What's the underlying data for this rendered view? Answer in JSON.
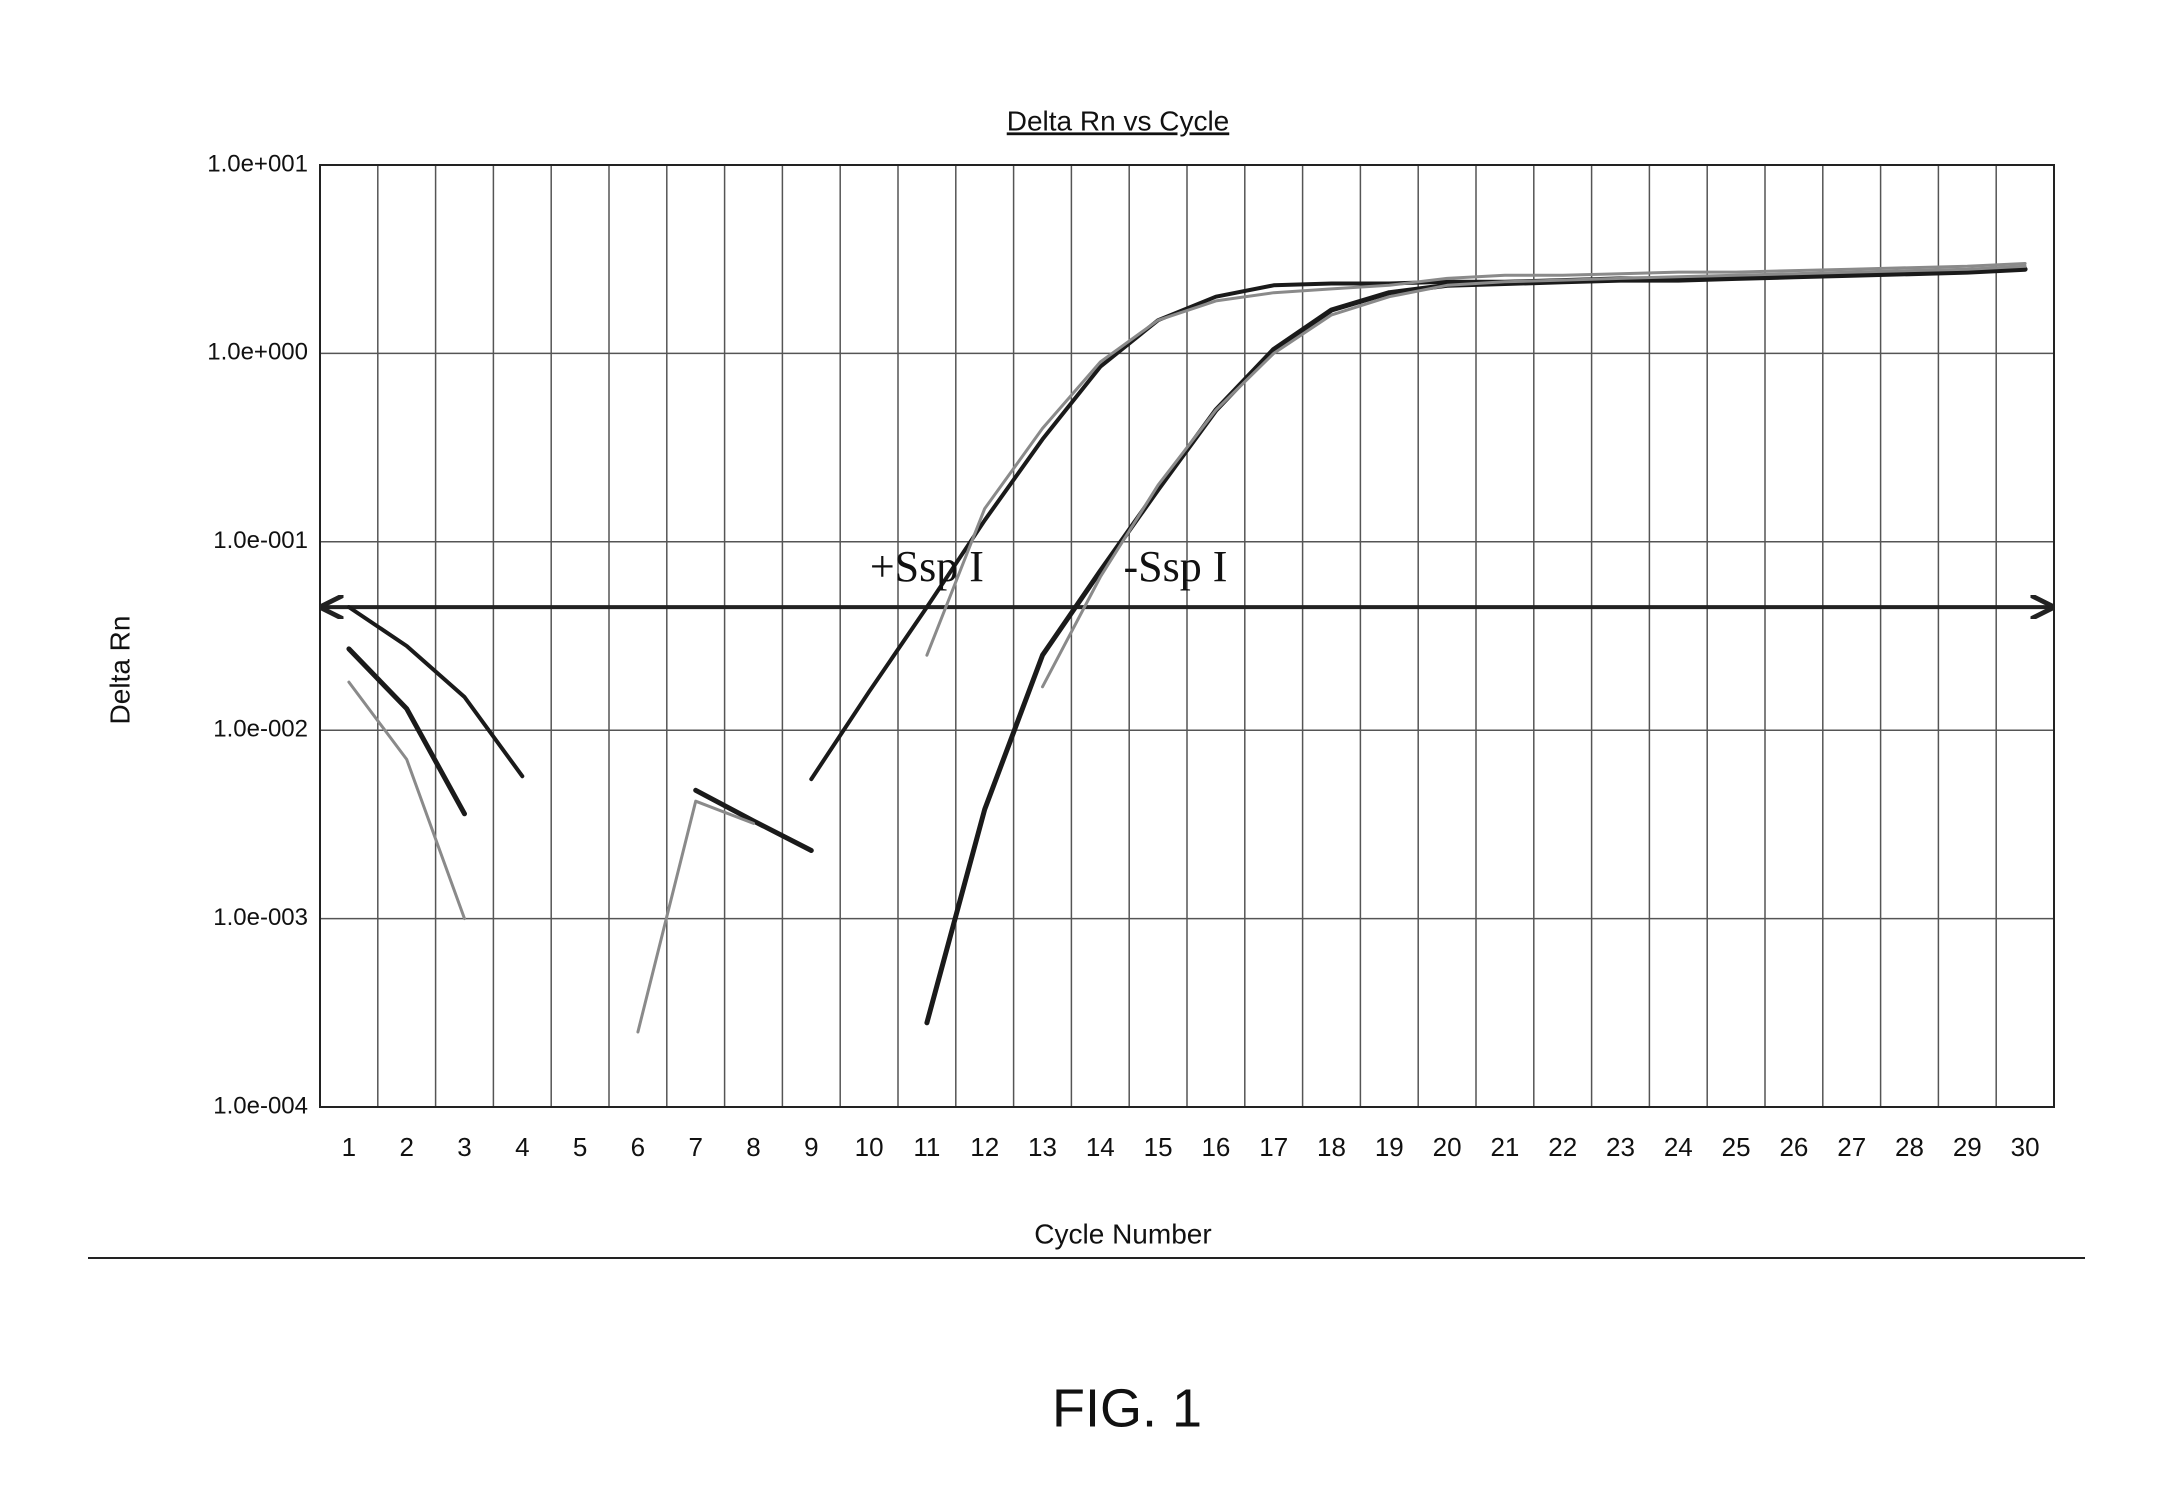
{
  "chart_data": {
    "type": "line",
    "title": "Delta Rn vs Cycle",
    "x_label": "Cycle Number",
    "y_label": "Delta Rn",
    "caption": "FIG. 1",
    "log_y": true,
    "grid": true,
    "categories": [
      "1",
      "2",
      "3",
      "4",
      "5",
      "6",
      "7",
      "8",
      "9",
      "10",
      "11",
      "12",
      "13",
      "14",
      "15",
      "16",
      "17",
      "18",
      "19",
      "20",
      "21",
      "22",
      "23",
      "24",
      "25",
      "26",
      "27",
      "28",
      "29",
      "30"
    ],
    "ylim": [
      0.0001,
      10
    ],
    "yticks": [
      {
        "value": 0.0001,
        "label": "1.0e-004"
      },
      {
        "value": 0.001,
        "label": "1.0e-003"
      },
      {
        "value": 0.01,
        "label": "1.0e-002"
      },
      {
        "value": 0.1,
        "label": "1.0e-001"
      },
      {
        "value": 1,
        "label": "1.0e+000"
      },
      {
        "value": 10,
        "label": "1.0e+001"
      }
    ],
    "threshold": 0.045,
    "annotations": [
      {
        "text": "+Ssp I",
        "x": 11,
        "y": 0.07
      },
      {
        "text": "-Ssp I",
        "x": 15.3,
        "y": 0.07
      }
    ],
    "series": [
      {
        "color": "#1a1a1a",
        "width": 4,
        "values": [
          0.045,
          0.028,
          0.015,
          0.0057,
          null,
          null,
          null,
          null,
          0.0055,
          0.016,
          0.045,
          0.13,
          0.35,
          0.85,
          1.5,
          2.0,
          2.3,
          2.35,
          2.35,
          2.4,
          2.4,
          2.45,
          2.5,
          2.5,
          2.55,
          2.6,
          2.6,
          2.65,
          2.7,
          2.8
        ]
      },
      {
        "color": "#1a1a1a",
        "width": 5,
        "values": [
          0.027,
          0.013,
          0.0036,
          null,
          null,
          null,
          0.0048,
          0.0033,
          0.0023,
          null,
          0.00028,
          0.0038,
          0.025,
          0.07,
          0.19,
          0.5,
          1.05,
          1.7,
          2.1,
          2.3,
          2.35,
          2.4,
          2.45,
          2.45,
          2.5,
          2.55,
          2.6,
          2.65,
          2.7,
          2.8
        ]
      },
      {
        "color": "#8a8a8a",
        "width": 3,
        "values": [
          0.018,
          0.007,
          0.001,
          null,
          null,
          0.00025,
          0.0042,
          0.0032,
          null,
          null,
          0.025,
          0.15,
          0.4,
          0.9,
          1.5,
          1.9,
          2.1,
          2.2,
          2.3,
          2.5,
          2.6,
          2.6,
          2.65,
          2.7,
          2.7,
          2.75,
          2.8,
          2.85,
          2.9,
          3.0
        ]
      },
      {
        "color": "#8a8a8a",
        "width": 3,
        "values": [
          null,
          null,
          null,
          null,
          null,
          null,
          null,
          null,
          null,
          null,
          null,
          null,
          0.017,
          0.065,
          0.2,
          0.5,
          1.0,
          1.6,
          2.0,
          2.3,
          2.4,
          2.45,
          2.5,
          2.55,
          2.6,
          2.65,
          2.7,
          2.75,
          2.8,
          2.9
        ]
      }
    ]
  }
}
